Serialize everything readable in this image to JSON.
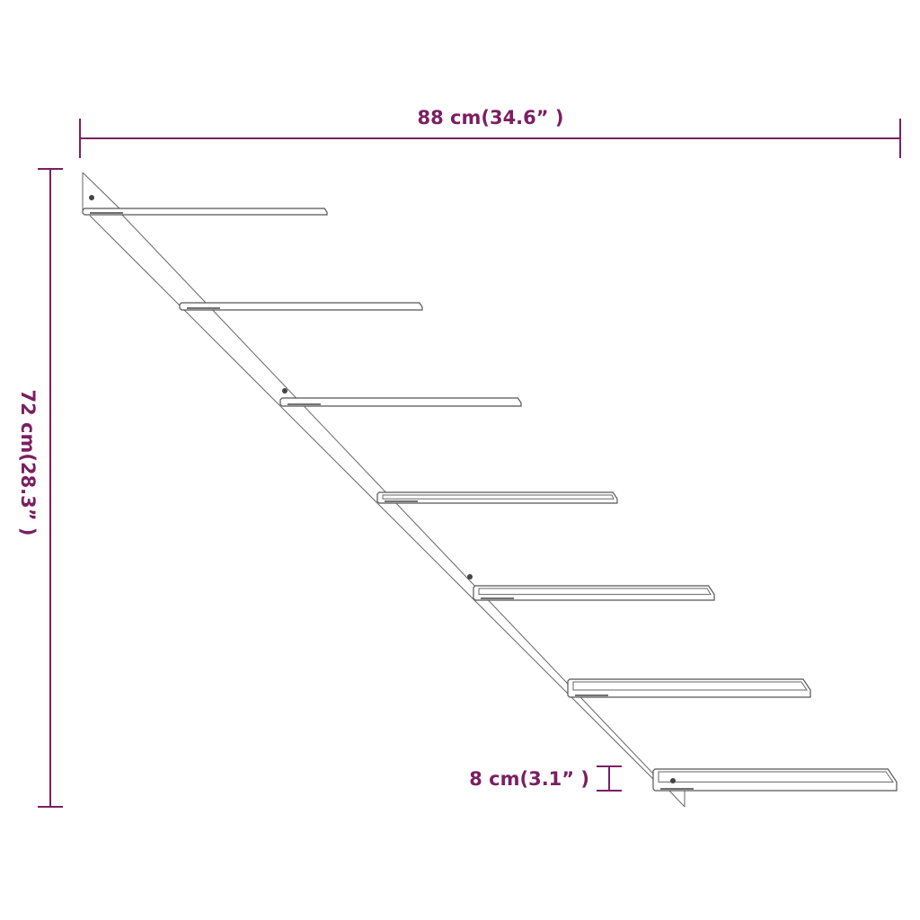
{
  "colors": {
    "dimension": "#7b1f62",
    "drawing": "#555555"
  },
  "dimensions": {
    "width": "88 cm(34.6” )",
    "height": "72 cm(28.3” )",
    "shelf_spacing": "8 cm(3.1” )"
  },
  "shelf_count": 7
}
